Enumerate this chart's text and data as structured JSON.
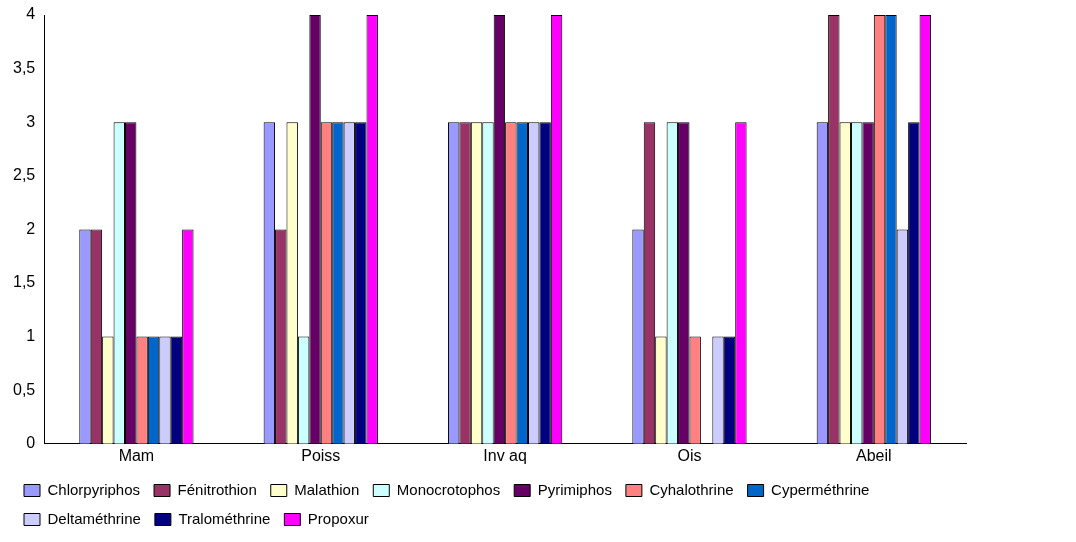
{
  "chart_data": {
    "type": "bar",
    "categories": [
      "Mam",
      "Poiss",
      "Inv aq",
      "Ois",
      "Abeil"
    ],
    "series": [
      {
        "name": "Chlorpyriphos",
        "color": "#9999ff",
        "values": [
          2,
          3,
          3,
          2,
          3
        ]
      },
      {
        "name": "Fénitrothion",
        "color": "#993366",
        "values": [
          2,
          2,
          3,
          3,
          4
        ]
      },
      {
        "name": "Malathion",
        "color": "#ffffcc",
        "values": [
          1,
          3,
          3,
          1,
          3
        ]
      },
      {
        "name": "Monocrotophos",
        "color": "#ccffff",
        "values": [
          3,
          1,
          3,
          3,
          3
        ]
      },
      {
        "name": "Pyrimiphos",
        "color": "#660066",
        "values": [
          3,
          4,
          4,
          3,
          3
        ]
      },
      {
        "name": "Cyhalothrine",
        "color": "#ff8080",
        "values": [
          1,
          3,
          3,
          1,
          4
        ]
      },
      {
        "name": "Cyperméthrine",
        "color": "#0066cc",
        "values": [
          1,
          3,
          3,
          0,
          4
        ]
      },
      {
        "name": "Deltaméthrine",
        "color": "#ccccff",
        "values": [
          1,
          3,
          3,
          1,
          2
        ]
      },
      {
        "name": "Tralométhrine",
        "color": "#000080",
        "values": [
          1,
          3,
          3,
          1,
          3
        ]
      },
      {
        "name": "Propoxur",
        "color": "#ff00ff",
        "values": [
          2,
          4,
          4,
          3,
          4
        ]
      }
    ],
    "ylim": [
      0,
      4
    ],
    "yticks": [
      0,
      {
        "value": 0.5,
        "label": "0,5"
      },
      1,
      {
        "value": 1.5,
        "label": "1,5"
      },
      2,
      {
        "value": 2.5,
        "label": "2,5"
      },
      3,
      {
        "value": 3.5,
        "label": "3,5"
      },
      4
    ],
    "grid": false,
    "legend": "bottom"
  }
}
